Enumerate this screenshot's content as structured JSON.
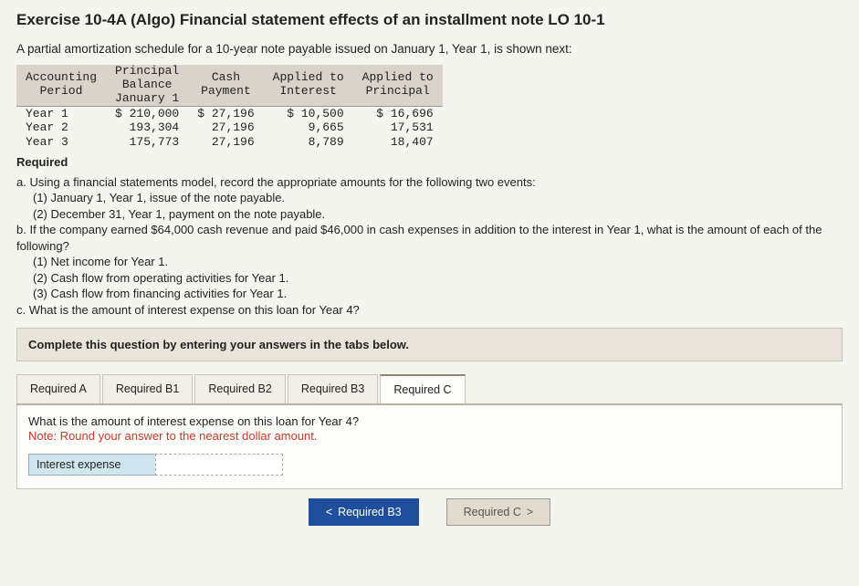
{
  "title": "Exercise 10-4A (Algo) Financial statement effects of an installment note LO 10-1",
  "intro": "A partial amortization schedule for a 10-year note payable issued on January 1, Year 1, is shown next:",
  "amort": {
    "headers": {
      "c0a": "Accounting",
      "c0b": "Period",
      "c1a": "Principal",
      "c1b": "Balance",
      "c1c": "January 1",
      "c2a": "Cash",
      "c2b": "Payment",
      "c3a": "Applied to",
      "c3b": "Interest",
      "c4a": "Applied to",
      "c4b": "Principal"
    },
    "rows": [
      {
        "period": "Year 1",
        "bal": "$ 210,000",
        "pay": "$ 27,196",
        "int": "$ 10,500",
        "prin": "$ 16,696"
      },
      {
        "period": "Year 2",
        "bal": "193,304",
        "pay": "27,196",
        "int": "9,665",
        "prin": "17,531"
      },
      {
        "period": "Year 3",
        "bal": "175,773",
        "pay": "27,196",
        "int": "8,789",
        "prin": "18,407"
      }
    ]
  },
  "required_label": "Required",
  "questions": {
    "a": "a. Using a financial statements model, record the appropriate amounts for the following two events:",
    "a1": "(1) January 1, Year 1, issue of the note payable.",
    "a2": "(2) December 31, Year 1, payment on the note payable.",
    "b": "b. If the company earned $64,000 cash revenue and paid $46,000 in cash expenses in addition to the interest in Year 1, what is the amount of each of the following?",
    "b1": "(1) Net income for Year 1.",
    "b2": "(2) Cash flow from operating activities for Year 1.",
    "b3": "(3) Cash flow from financing activities for Year 1.",
    "c": "c. What is the amount of interest expense on this loan for Year 4?"
  },
  "complete_prompt": "Complete this question by entering your answers in the tabs below.",
  "tabs": {
    "a": "Required A",
    "b1": "Required B1",
    "b2": "Required B2",
    "b3": "Required B3",
    "c": "Required C"
  },
  "tabc": {
    "prompt": "What is the amount of interest expense on this loan for Year 4?",
    "note": "Note: Round your answer to the nearest dollar amount.",
    "label": "Interest expense",
    "value": ""
  },
  "nav": {
    "prev_icon": "<",
    "prev": "Required B3",
    "next": "Required C",
    "next_icon": ">"
  }
}
